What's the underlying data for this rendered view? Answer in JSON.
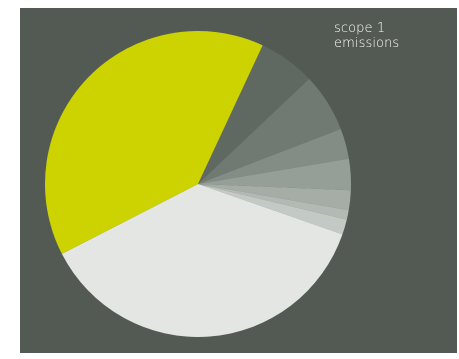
{
  "chart_data": {
    "type": "pie",
    "title": "",
    "annotation": {
      "line1": "scope 1",
      "line2": "emissions"
    },
    "start_angle_deg": -65,
    "direction": "clockwise",
    "slices": [
      {
        "value": 6.0,
        "color": "#5f6861"
      },
      {
        "value": 6.2,
        "color": "#707a72"
      },
      {
        "value": 3.2,
        "color": "#838d85"
      },
      {
        "value": 3.3,
        "color": "#959e97"
      },
      {
        "value": 2.1,
        "color": "#a5ada6"
      },
      {
        "value": 1.0,
        "color": "#b3bab4"
      },
      {
        "value": 1.6,
        "color": "#c3c9c4"
      },
      {
        "value": 37.1,
        "color": "#e3e6e3"
      },
      {
        "value": 39.5,
        "color": "#cdd300"
      }
    ],
    "background": "#525a53"
  }
}
